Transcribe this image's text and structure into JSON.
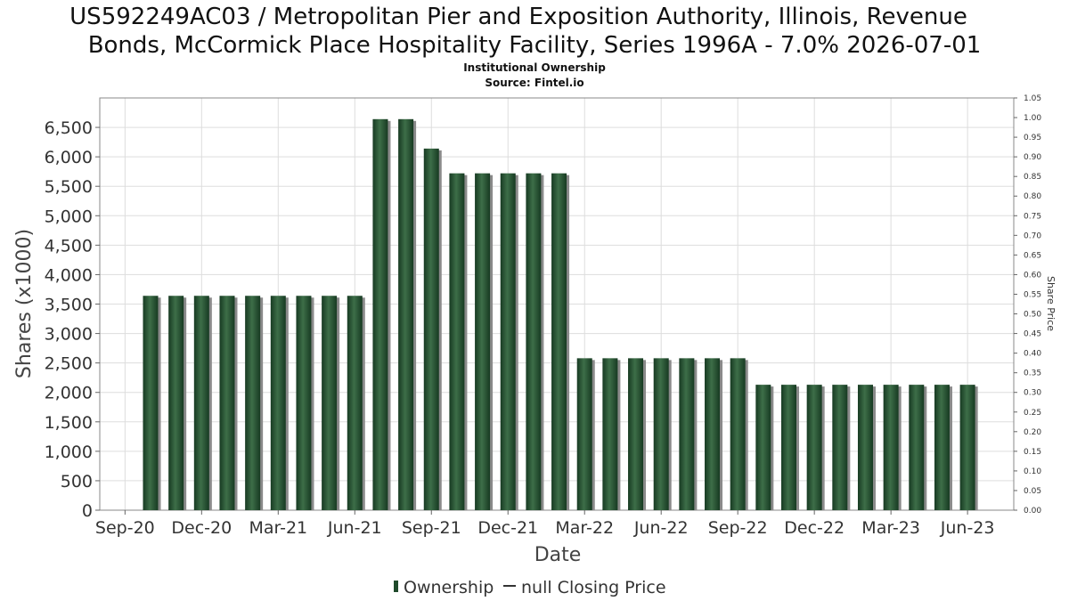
{
  "chart_data": {
    "type": "bar",
    "title_lines": [
      "US592249AC03 / Metropolitan Pier and Exposition Authority, Illinois, Revenue",
      "Bonds, McCormick Place Hospitality Facility, Series 1996A - 7.0% 2026-07-01"
    ],
    "subtitle_lines": [
      "Institutional Ownership",
      "Source: Fintel.io"
    ],
    "xlabel": "Date",
    "ylabel": "Shares (x1000)",
    "y2label": "Share Price",
    "ylim": [
      0,
      7000
    ],
    "y_ticks": [
      0,
      500,
      1000,
      1500,
      2000,
      2500,
      3000,
      3500,
      4000,
      4500,
      5000,
      5500,
      6000,
      6500
    ],
    "y_tick_labels": [
      "0",
      "500",
      "1,000",
      "1,500",
      "2,000",
      "2,500",
      "3,000",
      "3,500",
      "4,000",
      "4,500",
      "5,000",
      "5,500",
      "6,000",
      "6,500"
    ],
    "y2lim": [
      0,
      1.05
    ],
    "y2_tick_labels": [
      "0.00",
      "0.05",
      "0.10",
      "0.15",
      "0.20",
      "0.25",
      "0.30",
      "0.35",
      "0.40",
      "0.45",
      "0.50",
      "0.55",
      "0.60",
      "0.65",
      "0.70",
      "0.75",
      "0.80",
      "0.85",
      "0.90",
      "0.95",
      "1.00",
      "1.05"
    ],
    "x_tick_labels": [
      "Sep-20",
      "Dec-20",
      "Mar-21",
      "Jun-21",
      "Sep-21",
      "Dec-21",
      "Mar-22",
      "Jun-22",
      "Sep-22",
      "Dec-22",
      "Mar-23",
      "Jun-23"
    ],
    "grid": true,
    "legend_position": "bottom",
    "legend": [
      "Ownership",
      "null Closing Price"
    ],
    "colors": {
      "bar": "#1f4a2b",
      "bar_highlight": "#3a6a45",
      "shadow": "#8a8a8a",
      "grid": "#dddddd",
      "plot_border": "#888888"
    },
    "series": [
      {
        "name": "Ownership",
        "values": [
          3640,
          3640,
          3640,
          3640,
          3640,
          3640,
          3640,
          3640,
          3640,
          6640,
          6640,
          6140,
          5720,
          5720,
          5720,
          5720,
          5720,
          2580,
          2580,
          2580,
          2580,
          2580,
          2580,
          2580,
          2130,
          2130,
          2130,
          2130,
          2130,
          2130,
          2130,
          2130,
          2130
        ]
      }
    ]
  }
}
